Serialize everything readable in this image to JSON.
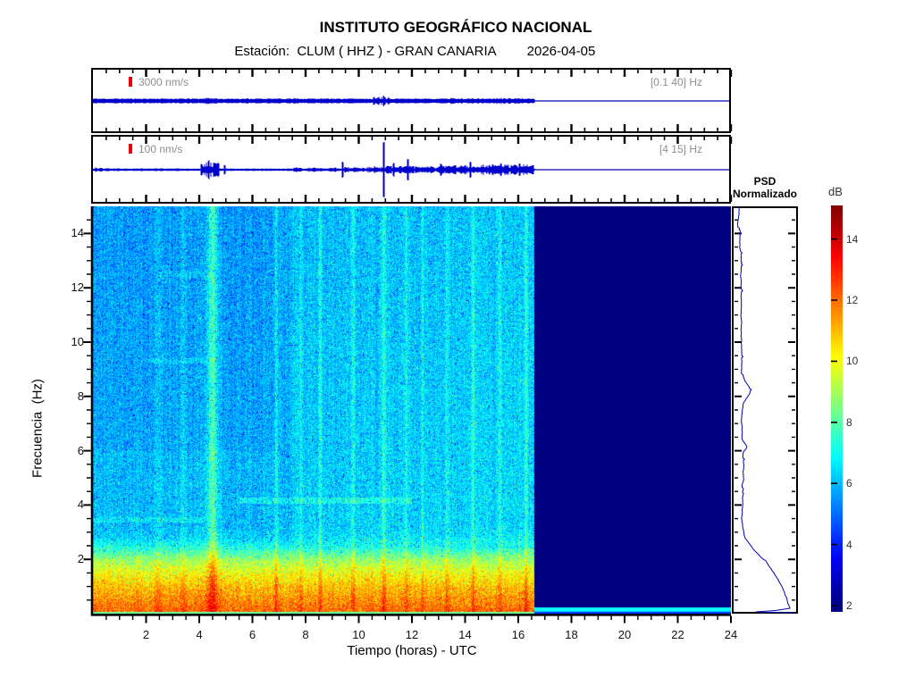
{
  "header": {
    "title": "INSTITUTO GEOGRÁFICO NACIONAL",
    "station_label": "Estación:  CLUM ( HHZ ) - GRAN CANARIA",
    "date": "2026-04-05"
  },
  "axes": {
    "x_label": "Tiempo (horas) - UTC",
    "y_label": "Frecuencia  (Hz)",
    "x_ticks": [
      2,
      4,
      6,
      8,
      10,
      12,
      14,
      16,
      18,
      20,
      22,
      24
    ],
    "y_ticks": [
      2,
      4,
      6,
      8,
      10,
      12,
      14
    ]
  },
  "psd_panel": {
    "title_line1": "PSD",
    "title_line2": "Normalizado"
  },
  "colorbar": {
    "title": "dB",
    "ticks": [
      14,
      12,
      10,
      8,
      6,
      4,
      2
    ],
    "range_db": [
      2,
      15
    ],
    "colormap": "jet"
  },
  "chart_data": [
    {
      "name": "trace_broadband",
      "type": "line",
      "scale_label": "3000 nm/s",
      "filter_band_label": "[0.1 40] Hz",
      "x_range_hours": [
        0,
        24
      ],
      "data_end_hour": 16.6,
      "line_color": "#0000cc",
      "base_amp": 2.3,
      "bursts": [
        {
          "h0": 4.15,
          "h1": 4.55,
          "amp": 3.8
        },
        {
          "h0": 7.35,
          "h1": 7.75,
          "amp": 3.2
        },
        {
          "h0": 10.55,
          "h1": 11.15,
          "amp": 4.6
        },
        {
          "h0": 13.15,
          "h1": 13.6,
          "amp": 3.6
        },
        {
          "h0": 15.1,
          "h1": 16.1,
          "amp": 3.6
        }
      ],
      "spikes": [
        {
          "h": 10.95,
          "amp": 6.5
        }
      ]
    },
    {
      "name": "trace_filtered",
      "type": "line",
      "scale_label": "100 nm/s",
      "filter_band_label": "[4 15] Hz",
      "x_range_hours": [
        0,
        24
      ],
      "data_end_hour": 16.6,
      "line_color": "#0000cc",
      "base_amp": 1.15,
      "bursts": [
        {
          "h0": 0.05,
          "h1": 0.35,
          "amp": 2.6
        },
        {
          "h0": 0.45,
          "h1": 0.95,
          "amp": 2.2
        },
        {
          "h0": 1.55,
          "h1": 1.85,
          "amp": 1.9
        },
        {
          "h0": 2.3,
          "h1": 2.65,
          "amp": 2.0
        },
        {
          "h0": 3.05,
          "h1": 3.25,
          "amp": 1.7
        },
        {
          "h0": 4.05,
          "h1": 4.75,
          "amp": 8.5
        },
        {
          "h0": 7.55,
          "h1": 7.85,
          "amp": 2.6
        },
        {
          "h0": 8.05,
          "h1": 9.3,
          "amp": 2.4
        },
        {
          "h0": 9.35,
          "h1": 10.25,
          "amp": 3.2
        },
        {
          "h0": 10.3,
          "h1": 11.05,
          "amp": 4.0
        },
        {
          "h0": 11.05,
          "h1": 12.05,
          "amp": 4.6
        },
        {
          "h0": 12.05,
          "h1": 13.05,
          "amp": 4.0
        },
        {
          "h0": 13.05,
          "h1": 14.55,
          "amp": 5.2
        },
        {
          "h0": 14.55,
          "h1": 16.6,
          "amp": 6.0
        }
      ],
      "spikes": [
        {
          "h": 4.35,
          "amp": 11
        },
        {
          "h": 4.95,
          "amp": 6
        },
        {
          "h": 9.4,
          "amp": 11
        },
        {
          "h": 10.95,
          "amp": 35
        },
        {
          "h": 11.3,
          "amp": 8
        },
        {
          "h": 11.85,
          "amp": 13
        },
        {
          "h": 13.1,
          "amp": 8
        },
        {
          "h": 14.2,
          "amp": 9
        },
        {
          "h": 15.35,
          "amp": 8
        },
        {
          "h": 16.05,
          "amp": 7
        }
      ]
    },
    {
      "name": "spectrogram",
      "type": "heatmap",
      "xlabel": "Tiempo (horas) - UTC",
      "ylabel": "Frecuencia  (Hz)",
      "x_range_hours": [
        0,
        24
      ],
      "y_range_hz": [
        0,
        15
      ],
      "colormap": "jet",
      "color_scale_db": [
        2,
        15
      ],
      "data_end_hour": 16.6,
      "no_data_value_db": 2,
      "background_profile_db": [
        [
          0,
          12.2
        ],
        [
          0.5,
          11.6
        ],
        [
          1,
          10.9
        ],
        [
          1.5,
          10.0
        ],
        [
          2,
          8.8
        ],
        [
          2.4,
          7.3
        ],
        [
          2.8,
          6.3
        ],
        [
          3.2,
          6.05
        ],
        [
          15,
          5.8
        ]
      ],
      "vertical_features": [
        {
          "h": 2.45,
          "amp": 0.7,
          "w": 0.07
        },
        {
          "h": 3.4,
          "amp": 0.9,
          "w": 0.06
        },
        {
          "h": 4.5,
          "amp": 1.8,
          "w": 0.12
        },
        {
          "h": 4.5,
          "amp": 0.5,
          "w": 0.3
        },
        {
          "h": 6.9,
          "amp": 1.3,
          "w": 0.05
        },
        {
          "h": 7.8,
          "amp": 0.7,
          "w": 0.05
        },
        {
          "h": 8.55,
          "amp": 1.1,
          "w": 0.05
        },
        {
          "h": 9.8,
          "amp": 1.2,
          "w": 0.05
        },
        {
          "h": 10.95,
          "amp": 1.4,
          "w": 0.06
        },
        {
          "h": 11.8,
          "amp": 1.0,
          "w": 0.05
        },
        {
          "h": 12.4,
          "amp": 0.8,
          "w": 0.05
        },
        {
          "h": 13.3,
          "amp": 0.9,
          "w": 0.05
        },
        {
          "h": 14.3,
          "amp": 1.2,
          "w": 0.05
        },
        {
          "h": 15.3,
          "amp": 1.0,
          "w": 0.05
        },
        {
          "h": 16.3,
          "amp": 1.3,
          "w": 0.05
        }
      ],
      "horizontal_features": [
        {
          "f": 4.15,
          "h0": 5.5,
          "h1": 12,
          "amp": 0.9,
          "w": 0.12
        },
        {
          "f": 3.45,
          "h0": 0,
          "h1": 4.2,
          "amp": 0.6,
          "w": 0.1
        },
        {
          "f": 9.3,
          "h0": 2,
          "h1": 4.6,
          "amp": 0.5,
          "w": 0.1
        },
        {
          "f": 12.5,
          "h0": 2.5,
          "h1": 4.5,
          "amp": 0.5,
          "w": 0.1
        }
      ]
    },
    {
      "name": "psd_normalized",
      "type": "line",
      "title": "PSD Normalizado",
      "orientation": "vertical",
      "y_range_hz": [
        0,
        15
      ],
      "line_color": "#0000bb",
      "bump_hz": 8.2
    }
  ]
}
